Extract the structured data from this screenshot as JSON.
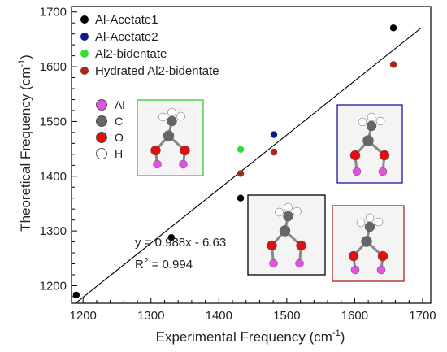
{
  "chart_data": {
    "type": "scatter",
    "xlabel": "Experimental Frequency (cm",
    "xlabel_sup": "-1",
    "xlabel_end": ")",
    "ylabel": "Theoretical Frequency  (cm",
    "ylabel_sup": "-1",
    "ylabel_end": ")",
    "xlim": [
      1183,
      1712
    ],
    "ylim": [
      1168,
      1710
    ],
    "xticks": [
      1200,
      1300,
      1400,
      1500,
      1600,
      1700
    ],
    "yticks": [
      1200,
      1300,
      1400,
      1500,
      1600,
      1700
    ],
    "x_minor_step": 20,
    "y_minor_step": 20,
    "legend_position": "top-left",
    "series": [
      {
        "name": "Al-Acetate1",
        "color": "#000000",
        "points": [
          [
            1190,
            1183
          ],
          [
            1330,
            1288
          ],
          [
            1432,
            1360
          ],
          [
            1657,
            1671
          ]
        ]
      },
      {
        "name": "Al-Acetate2",
        "color": "#0d1a8f",
        "points": [
          [
            1481,
            1476
          ]
        ]
      },
      {
        "name": "Al2-bidentate",
        "color": "#33dd33",
        "points": [
          [
            1432,
            1449
          ]
        ]
      },
      {
        "name": "Hydrated Al2-bidentate",
        "color": "#a52a1a",
        "points": [
          [
            1432,
            1405
          ],
          [
            1481,
            1444
          ],
          [
            1657,
            1604
          ]
        ]
      }
    ],
    "fit": {
      "slope": 0.988,
      "intercept": -6.63,
      "x_range": [
        1190,
        1697
      ]
    },
    "annotations": {
      "equation": "y = 0.988x - 6.63",
      "r2_label": "R",
      "r2_sup": "2",
      "r2_value": " = 0.994"
    },
    "atom_legend": [
      {
        "label": "Al",
        "color": "#e055e0"
      },
      {
        "label": "C",
        "color": "#666666"
      },
      {
        "label": "O",
        "color": "#dd1111"
      },
      {
        "label": "H",
        "color": "#ffffff"
      }
    ],
    "inset_frames": [
      {
        "name": "Al2-bidentate",
        "color": "#33cc33"
      },
      {
        "name": "Al-Acetate2",
        "color": "#1a1aa0"
      },
      {
        "name": "Al-Acetate1",
        "color": "#000000"
      },
      {
        "name": "Hydrated Al2-bidentate",
        "color": "#a52a1a"
      }
    ]
  }
}
